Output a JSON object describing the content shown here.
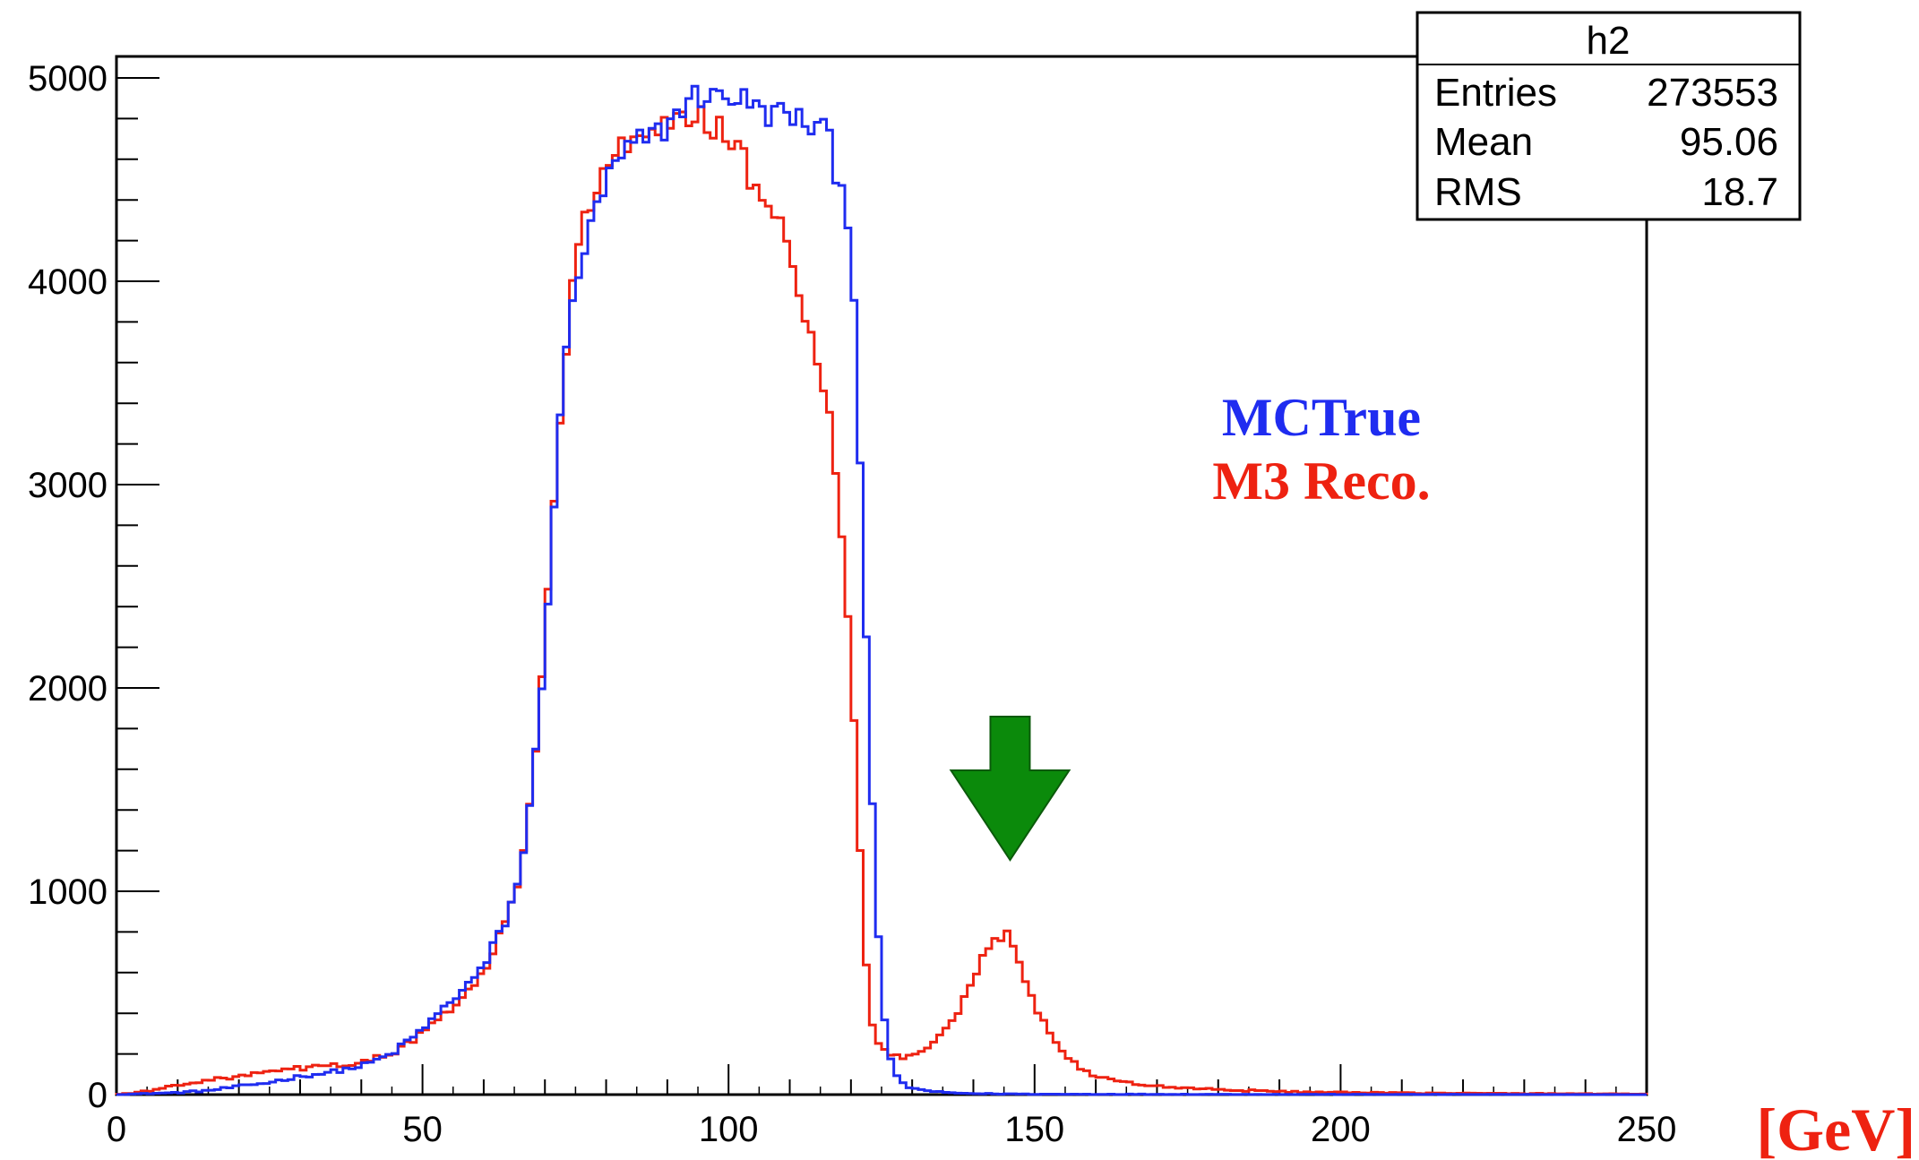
{
  "chart_data": {
    "type": "histogram",
    "title": "",
    "xlabel": "[GeV]",
    "ylabel": "",
    "xlim": [
      0,
      250
    ],
    "ylim": [
      0,
      5000
    ],
    "bin_width": 1,
    "x_ticks": [
      "0",
      "50",
      "100",
      "150",
      "200",
      "250"
    ],
    "y_ticks": [
      "0",
      "1000",
      "2000",
      "3000",
      "4000",
      "5000"
    ],
    "grid": false,
    "series": [
      {
        "name": "MCTrue",
        "color": "#1f2cf0",
        "anchors": [
          [
            0,
            0
          ],
          [
            5,
            5
          ],
          [
            10,
            10
          ],
          [
            15,
            20
          ],
          [
            20,
            40
          ],
          [
            25,
            60
          ],
          [
            30,
            90
          ],
          [
            35,
            110
          ],
          [
            40,
            140
          ],
          [
            45,
            200
          ],
          [
            50,
            320
          ],
          [
            55,
            470
          ],
          [
            58,
            560
          ],
          [
            60,
            620
          ],
          [
            62,
            760
          ],
          [
            64,
            880
          ],
          [
            66,
            1100
          ],
          [
            68,
            1500
          ],
          [
            70,
            2200
          ],
          [
            71,
            2700
          ],
          [
            72,
            3100
          ],
          [
            73,
            3500
          ],
          [
            74,
            3800
          ],
          [
            75,
            4000
          ],
          [
            77,
            4200
          ],
          [
            79,
            4400
          ],
          [
            81,
            4550
          ],
          [
            83,
            4620
          ],
          [
            85,
            4680
          ],
          [
            88,
            4720
          ],
          [
            90,
            4760
          ],
          [
            92,
            4850
          ],
          [
            94,
            4900
          ],
          [
            96,
            4920
          ],
          [
            98,
            4900
          ],
          [
            100,
            4920
          ],
          [
            102,
            4900
          ],
          [
            104,
            4860
          ],
          [
            106,
            4820
          ],
          [
            108,
            4830
          ],
          [
            110,
            4820
          ],
          [
            112,
            4780
          ],
          [
            114,
            4760
          ],
          [
            116,
            4750
          ],
          [
            117,
            4600
          ],
          [
            118,
            4500
          ],
          [
            119,
            4400
          ],
          [
            120,
            4250
          ],
          [
            121,
            3600
          ],
          [
            122,
            2700
          ],
          [
            123,
            1800
          ],
          [
            124,
            1000
          ],
          [
            125,
            500
          ],
          [
            126,
            250
          ],
          [
            127,
            110
          ],
          [
            128,
            60
          ],
          [
            130,
            30
          ],
          [
            135,
            10
          ],
          [
            140,
            5
          ],
          [
            150,
            2
          ],
          [
            250,
            0
          ]
        ]
      },
      {
        "name": "M3 Reco.",
        "color": "#ee2211",
        "anchors": [
          [
            0,
            0
          ],
          [
            3,
            10
          ],
          [
            6,
            20
          ],
          [
            10,
            50
          ],
          [
            15,
            70
          ],
          [
            20,
            90
          ],
          [
            25,
            110
          ],
          [
            30,
            130
          ],
          [
            35,
            140
          ],
          [
            40,
            160
          ],
          [
            45,
            200
          ],
          [
            50,
            300
          ],
          [
            55,
            430
          ],
          [
            58,
            520
          ],
          [
            60,
            600
          ],
          [
            62,
            740
          ],
          [
            64,
            870
          ],
          [
            66,
            1100
          ],
          [
            68,
            1500
          ],
          [
            70,
            2200
          ],
          [
            71,
            2700
          ],
          [
            72,
            3100
          ],
          [
            73,
            3500
          ],
          [
            74,
            3900
          ],
          [
            75,
            4150
          ],
          [
            77,
            4350
          ],
          [
            79,
            4500
          ],
          [
            81,
            4620
          ],
          [
            83,
            4650
          ],
          [
            85,
            4680
          ],
          [
            88,
            4720
          ],
          [
            90,
            4750
          ],
          [
            92,
            4790
          ],
          [
            94,
            4820
          ],
          [
            96,
            4790
          ],
          [
            98,
            4760
          ],
          [
            100,
            4720
          ],
          [
            102,
            4680
          ],
          [
            103,
            4500
          ],
          [
            104,
            4420
          ],
          [
            106,
            4380
          ],
          [
            108,
            4320
          ],
          [
            109,
            4250
          ],
          [
            110,
            4100
          ],
          [
            111,
            4000
          ],
          [
            112,
            3900
          ],
          [
            113,
            3800
          ],
          [
            114,
            3700
          ],
          [
            115,
            3550
          ],
          [
            116,
            3400
          ],
          [
            117,
            3200
          ],
          [
            118,
            2900
          ],
          [
            119,
            2600
          ],
          [
            120,
            2100
          ],
          [
            121,
            1500
          ],
          [
            122,
            900
          ],
          [
            123,
            400
          ],
          [
            124,
            260
          ],
          [
            126,
            200
          ],
          [
            128,
            185
          ],
          [
            130,
            190
          ],
          [
            132,
            220
          ],
          [
            134,
            260
          ],
          [
            136,
            330
          ],
          [
            138,
            430
          ],
          [
            140,
            560
          ],
          [
            142,
            700
          ],
          [
            144,
            770
          ],
          [
            145,
            790
          ],
          [
            146,
            780
          ],
          [
            147,
            720
          ],
          [
            148,
            600
          ],
          [
            150,
            450
          ],
          [
            152,
            330
          ],
          [
            154,
            230
          ],
          [
            156,
            170
          ],
          [
            158,
            120
          ],
          [
            160,
            90
          ],
          [
            165,
            60
          ],
          [
            170,
            40
          ],
          [
            180,
            25
          ],
          [
            190,
            15
          ],
          [
            200,
            10
          ],
          [
            220,
            6
          ],
          [
            250,
            3
          ]
        ]
      }
    ],
    "legend": [
      {
        "label": "MCTrue",
        "color": "#1f2cf0"
      },
      {
        "label": "M3 Reco.",
        "color": "#ee2211"
      }
    ],
    "annotation": {
      "type": "arrow",
      "color": "#0b8a0b",
      "points_to_x": 146
    }
  },
  "stats_box": {
    "title": "h2",
    "rows": [
      {
        "label": "Entries",
        "value": "273553"
      },
      {
        "label": "Mean",
        "value": "95.06"
      },
      {
        "label": "RMS",
        "value": "18.7"
      }
    ]
  }
}
